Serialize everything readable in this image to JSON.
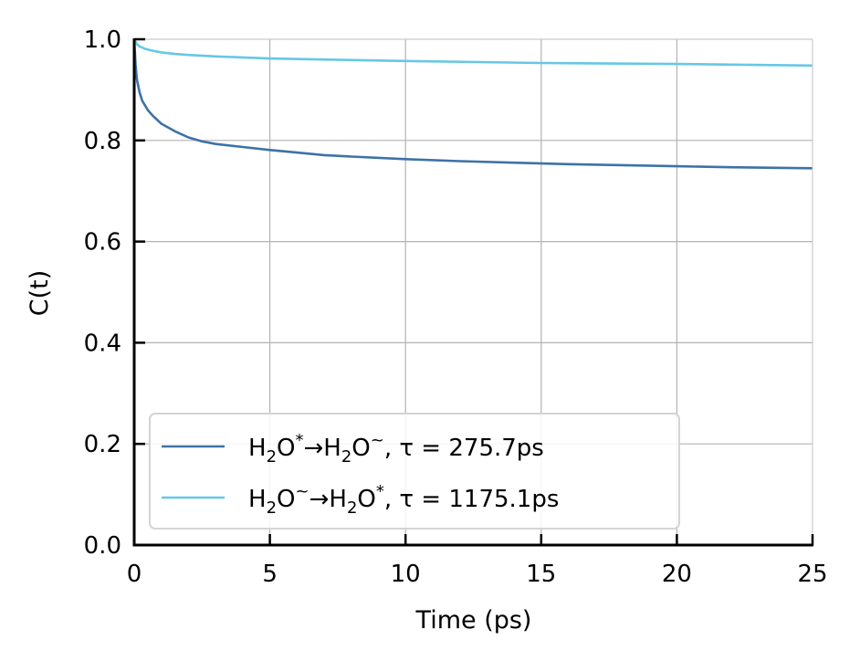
{
  "chart_data": {
    "type": "line",
    "xlabel": "Time (ps)",
    "ylabel": "C(t)",
    "xlim": [
      0,
      25
    ],
    "ylim": [
      0.0,
      1.0
    ],
    "x_ticks": [
      "0",
      "5",
      "10",
      "15",
      "20",
      "25"
    ],
    "x_tick_values": [
      0,
      5,
      10,
      15,
      20,
      25
    ],
    "y_ticks": [
      "0.0",
      "0.2",
      "0.4",
      "0.6",
      "0.8",
      "1.0"
    ],
    "y_tick_values": [
      0.0,
      0.2,
      0.4,
      0.6,
      0.8,
      1.0
    ],
    "grid": true,
    "legend_position": "lower-left",
    "series": [
      {
        "from_base": "H",
        "from_sub": "2",
        "from_tail": "O",
        "from_sup": "*",
        "arrow": "→",
        "to_base": "H",
        "to_sub": "2",
        "to_tail": "O",
        "to_sup": "~",
        "tau_label": ", τ = 275.7ps",
        "color": "#3d72a8",
        "x": [
          0,
          0.05,
          0.1,
          0.2,
          0.3,
          0.5,
          0.7,
          1.0,
          1.5,
          2.0,
          2.5,
          3.0,
          4.0,
          5.0,
          6.0,
          7.0,
          8.0,
          10.0,
          12.0,
          14.0,
          16.0,
          18.0,
          20.0,
          22.0,
          25.0
        ],
        "y": [
          1.0,
          0.95,
          0.92,
          0.895,
          0.878,
          0.86,
          0.848,
          0.833,
          0.818,
          0.806,
          0.798,
          0.793,
          0.787,
          0.781,
          0.776,
          0.771,
          0.768,
          0.763,
          0.759,
          0.756,
          0.753,
          0.751,
          0.749,
          0.747,
          0.745
        ]
      },
      {
        "from_base": "H",
        "from_sub": "2",
        "from_tail": "O",
        "from_sup": "~",
        "arrow": "→",
        "to_base": "H",
        "to_sub": "2",
        "to_tail": "O",
        "to_sup": "*",
        "tau_label": ", τ = 1175.1ps",
        "color": "#66c7e6",
        "x": [
          0,
          0.05,
          0.1,
          0.2,
          0.4,
          0.7,
          1.0,
          1.5,
          2.0,
          3.0,
          4.0,
          5.0,
          7.0,
          10.0,
          15.0,
          20.0,
          25.0
        ],
        "y": [
          1.0,
          0.995,
          0.99,
          0.986,
          0.981,
          0.977,
          0.974,
          0.971,
          0.969,
          0.966,
          0.964,
          0.962,
          0.96,
          0.957,
          0.953,
          0.951,
          0.948
        ]
      }
    ]
  }
}
